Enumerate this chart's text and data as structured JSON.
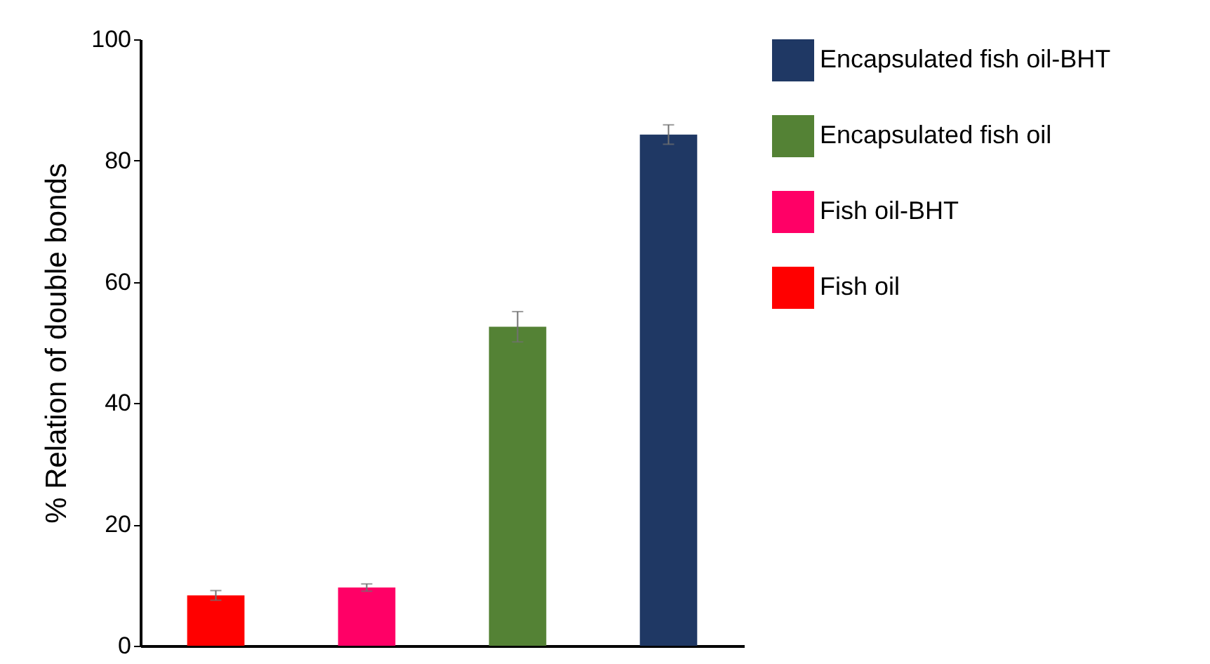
{
  "chart_data": {
    "type": "bar",
    "ylabel": "% Relation of double bonds",
    "categories": [
      null,
      null,
      null,
      null
    ],
    "series": [
      {
        "name": "Fish oil",
        "color": "#ff0000",
        "values": [
          8.3,
          null,
          null,
          null
        ],
        "errors": [
          0.8,
          null,
          null,
          null
        ]
      },
      {
        "name": "Fish oil-BHT",
        "color": "#ff0066",
        "values": [
          null,
          9.6,
          null,
          null
        ],
        "errors": [
          null,
          0.6,
          null,
          null
        ]
      },
      {
        "name": "Encapsulated fish oil",
        "color": "#548235",
        "values": [
          null,
          null,
          52.6,
          null
        ],
        "errors": [
          null,
          null,
          2.5,
          null
        ]
      },
      {
        "name": "Encapsulated fish oil-BHT",
        "color": "#1f3864",
        "values": [
          null,
          null,
          null,
          84.3
        ],
        "errors": [
          null,
          null,
          null,
          1.6
        ]
      }
    ],
    "ylim": [
      0,
      100
    ],
    "yticks": [
      0,
      20,
      40,
      60,
      80,
      100
    ],
    "tick_labels": "y",
    "grid": false,
    "legend": "right"
  }
}
